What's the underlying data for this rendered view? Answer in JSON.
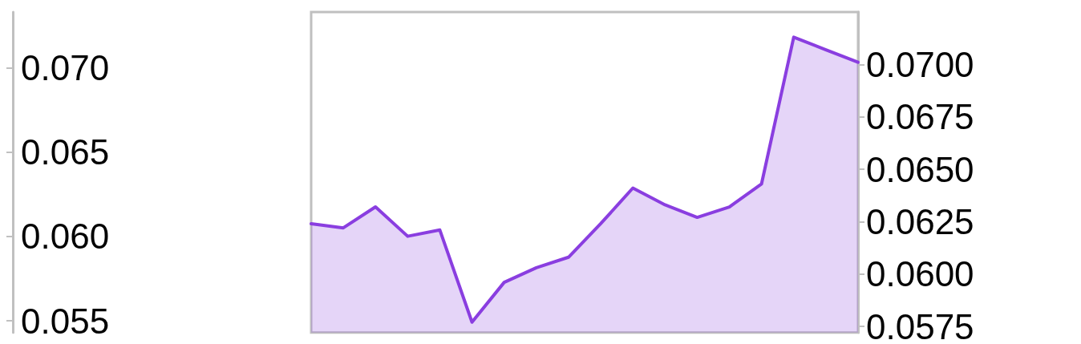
{
  "chart_data": {
    "type": "area",
    "categories": [
      null,
      null,
      null,
      null,
      null,
      null,
      null,
      null,
      null,
      null,
      null,
      null,
      null,
      null,
      null,
      null,
      null,
      null
    ],
    "series": [
      {
        "color": "#8a3ee0",
        "axis": "y2",
        "values": [
          0.0624,
          0.0622,
          0.0632,
          0.0618,
          0.0621,
          0.0577,
          0.0596,
          0.0603,
          0.0608,
          0.0624,
          0.0641,
          0.0633,
          0.0627,
          0.0632,
          0.0643,
          0.0713,
          0.0707,
          0.0701
        ]
      }
    ],
    "ylim": [
      0.0543,
      0.0733
    ],
    "yticks": [
      {
        "value": 0.055,
        "label": "0.055"
      },
      {
        "value": 0.06,
        "label": "0.060"
      },
      {
        "value": 0.065,
        "label": "0.065"
      },
      {
        "value": 0.07,
        "label": "0.070"
      }
    ],
    "y2lim": [
      0.0572,
      0.0725
    ],
    "y2ticks": [
      {
        "value": 0.0575,
        "label": "0.0575"
      },
      {
        "value": 0.06,
        "label": "0.0600"
      },
      {
        "value": 0.0625,
        "label": "0.0625"
      },
      {
        "value": 0.065,
        "label": "0.0650"
      },
      {
        "value": 0.0675,
        "label": "0.0675"
      },
      {
        "value": 0.07,
        "label": "0.0700"
      }
    ],
    "grid": false,
    "marker": "none",
    "line_style": "solid"
  }
}
